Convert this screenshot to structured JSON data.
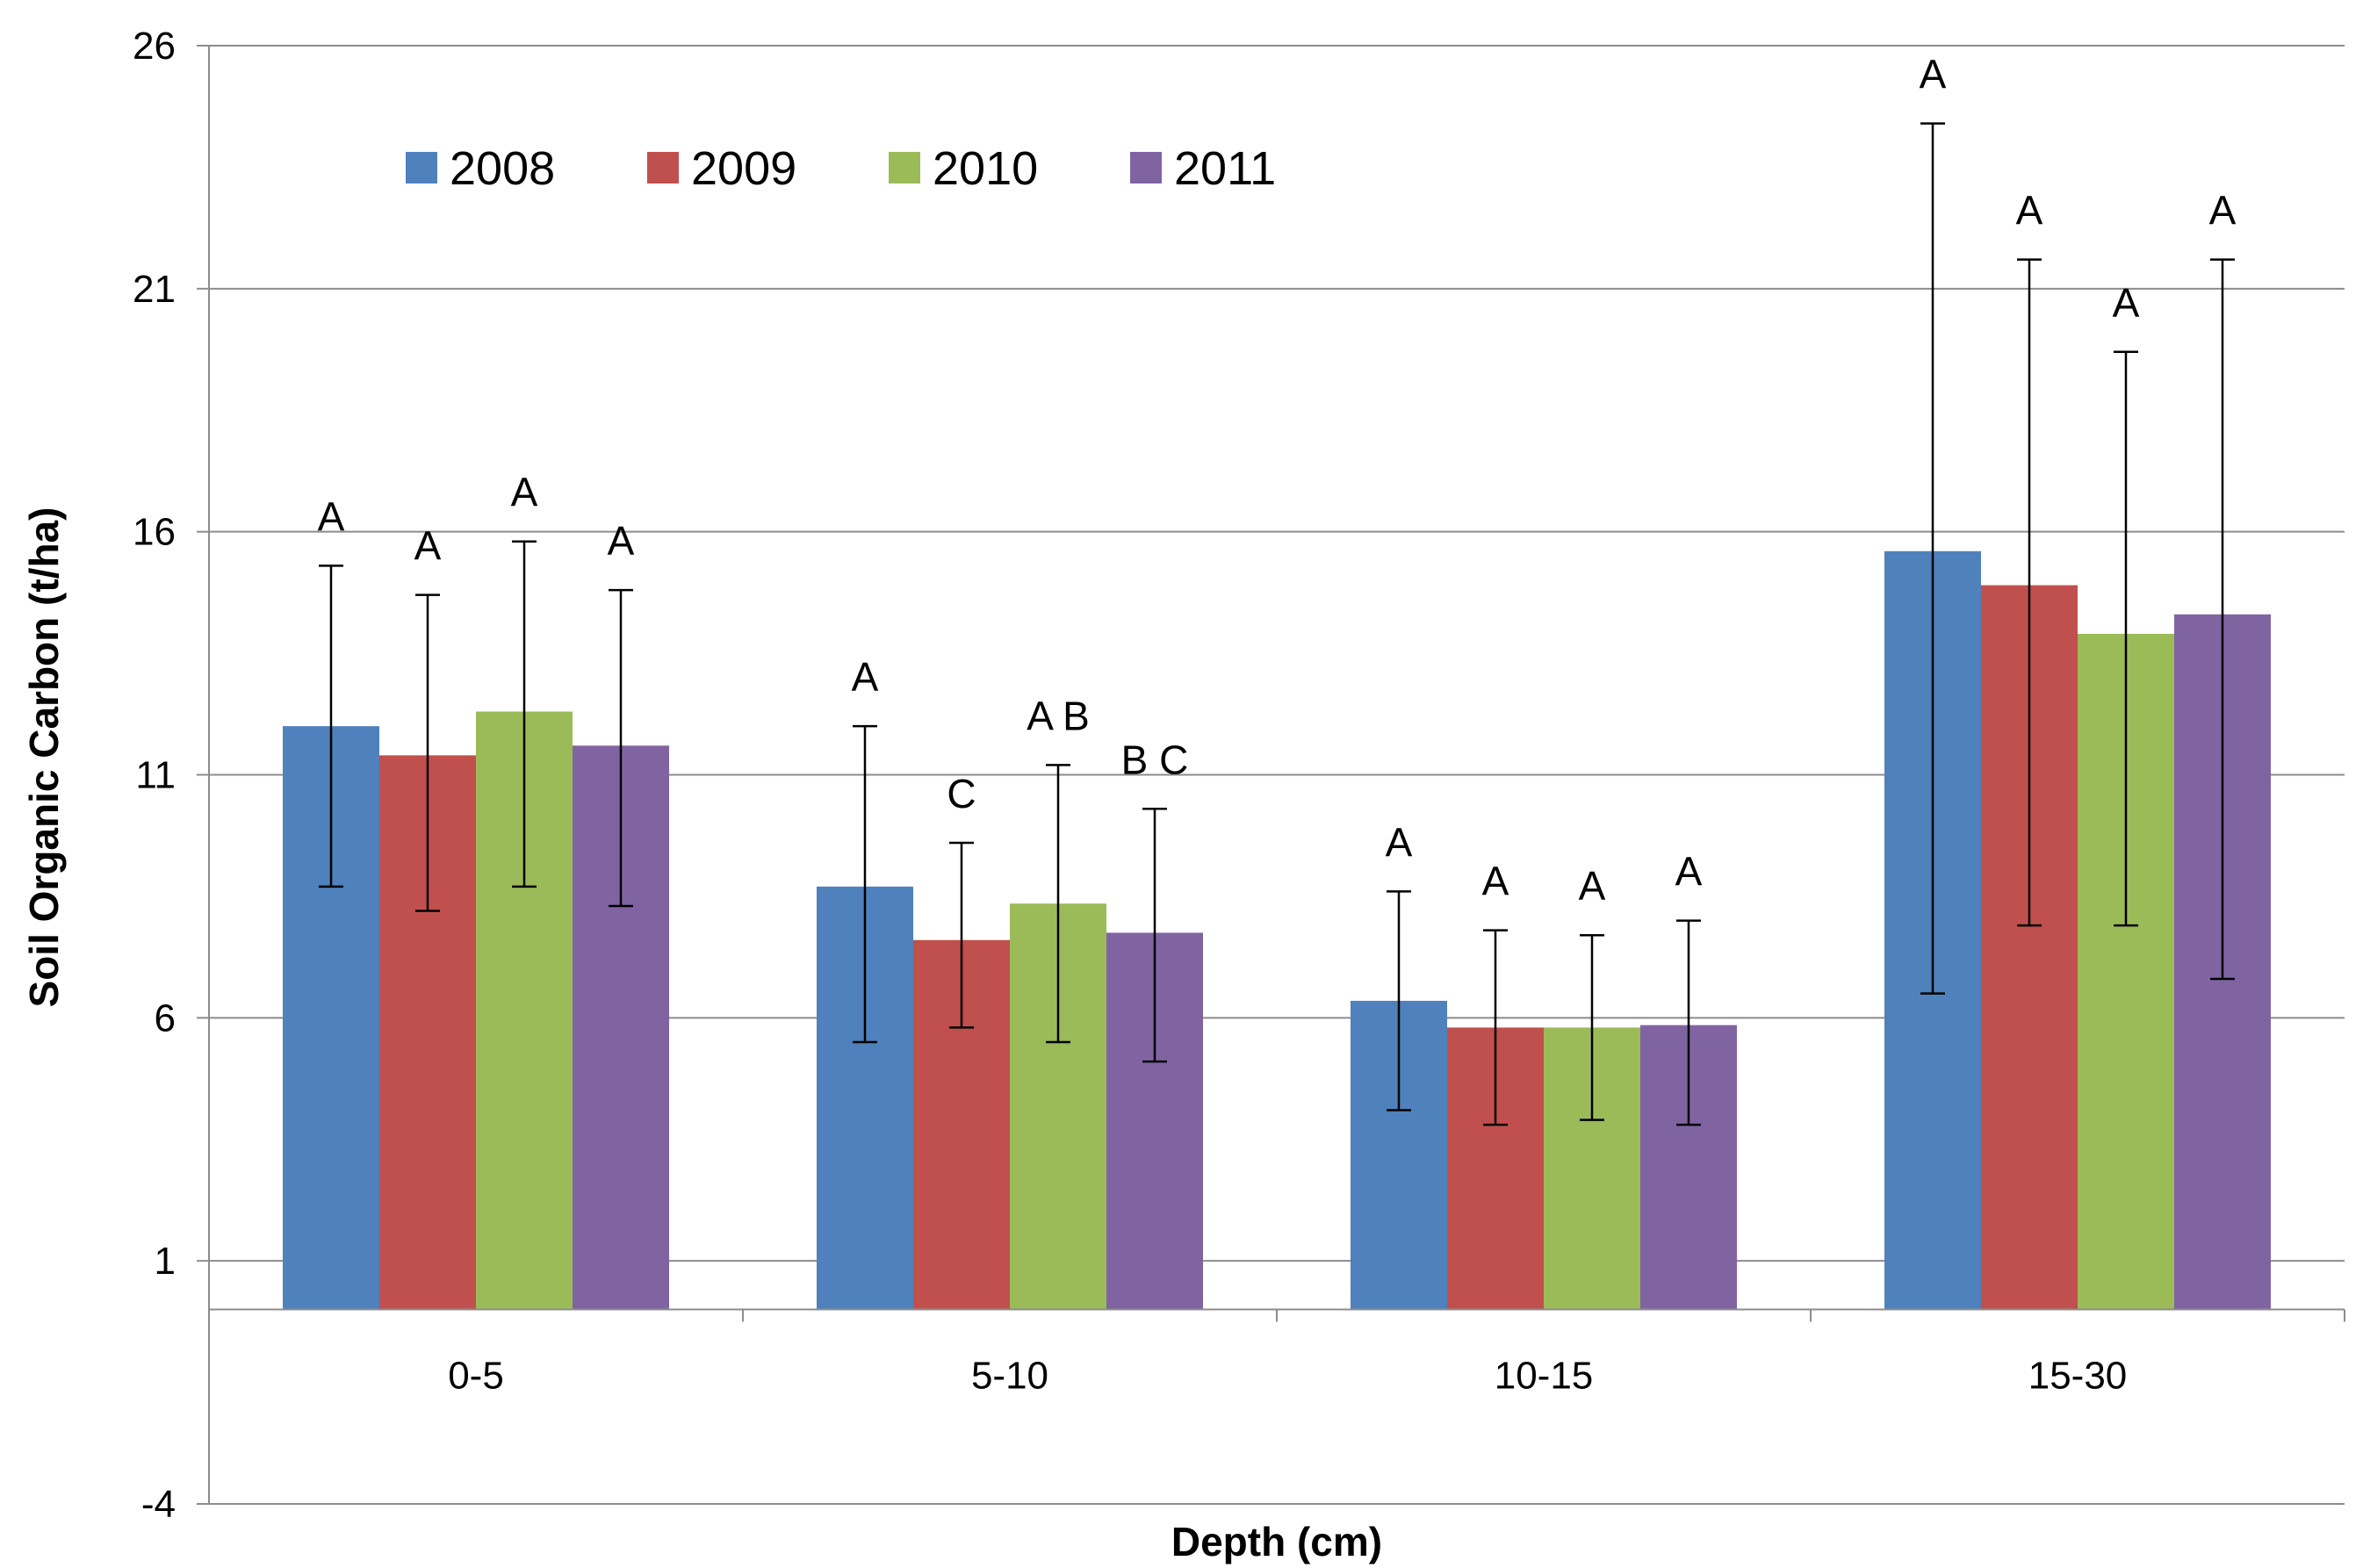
{
  "chart_data": {
    "type": "bar",
    "xlabel": "Depth (cm)",
    "ylabel": "Soil Organic Carbon (t/ha)",
    "ylim": [
      -4,
      26
    ],
    "yticks": [
      -4,
      1,
      6,
      11,
      16,
      21,
      26
    ],
    "ytick_labels": [
      "-4",
      "1",
      "6",
      "11",
      "16",
      "21",
      "26"
    ],
    "bar_base": 0,
    "grid": true,
    "legend_position": "top-left",
    "categories": [
      "0-5",
      "5-10",
      "10-15",
      "15-30"
    ],
    "series": [
      {
        "name": "2008",
        "color": "#4f81bd",
        "values": [
          12.0,
          8.7,
          6.35,
          15.6
        ],
        "error_low": [
          8.7,
          5.5,
          4.1,
          6.5
        ],
        "error_high": [
          15.3,
          12.0,
          8.6,
          24.4
        ],
        "letters": [
          "A",
          "A",
          "A",
          "A"
        ]
      },
      {
        "name": "2009",
        "color": "#c0504d",
        "values": [
          11.4,
          7.6,
          5.8,
          14.9
        ],
        "error_low": [
          8.2,
          5.8,
          3.8,
          7.9
        ],
        "error_high": [
          14.7,
          9.6,
          7.8,
          21.6
        ],
        "letters": [
          "A",
          "C",
          "A",
          "A"
        ]
      },
      {
        "name": "2010",
        "color": "#9bbb59",
        "values": [
          12.3,
          8.35,
          5.8,
          13.9
        ],
        "error_low": [
          8.7,
          5.5,
          3.9,
          7.9
        ],
        "error_high": [
          15.8,
          11.2,
          7.7,
          19.7
        ],
        "letters": [
          "A",
          "A B",
          "A",
          "A"
        ]
      },
      {
        "name": "2011",
        "color": "#8064a2",
        "values": [
          11.6,
          7.75,
          5.85,
          14.3
        ],
        "error_low": [
          8.3,
          5.1,
          3.8,
          6.8
        ],
        "error_high": [
          14.8,
          10.3,
          8.0,
          21.6
        ],
        "letters": [
          "A",
          "B C",
          "A",
          "A"
        ]
      }
    ]
  }
}
